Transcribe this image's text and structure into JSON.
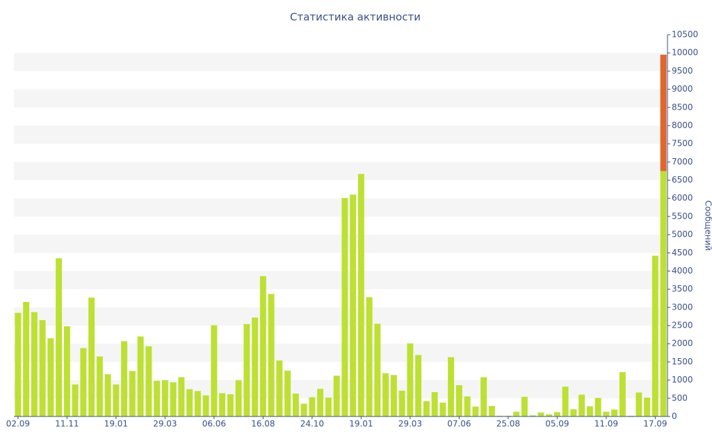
{
  "chart_data": {
    "type": "bar",
    "stacked": true,
    "title": "Статистика активности",
    "y_label": "Сообщений",
    "categories": [
      "02.09",
      null,
      null,
      null,
      null,
      null,
      "11.11",
      null,
      null,
      null,
      null,
      null,
      "19.01",
      null,
      null,
      null,
      null,
      null,
      "29.03",
      null,
      null,
      null,
      null,
      null,
      "06.06",
      null,
      null,
      null,
      null,
      null,
      "16.08",
      null,
      null,
      null,
      null,
      null,
      "24.10",
      null,
      null,
      null,
      null,
      null,
      "19.01",
      null,
      null,
      null,
      null,
      null,
      "29.03",
      null,
      null,
      null,
      null,
      null,
      "07.06",
      null,
      null,
      null,
      null,
      null,
      "25.08",
      null,
      null,
      null,
      null,
      null,
      "05.09",
      null,
      null,
      null,
      null,
      null,
      "11.09",
      null,
      null,
      null,
      null,
      null,
      "17.09",
      null
    ],
    "series": [
      {
        "color": "#bde033",
        "values": [
          2850,
          3150,
          2870,
          2650,
          2150,
          4350,
          2480,
          880,
          1880,
          3270,
          1650,
          1160,
          880,
          2070,
          1250,
          2200,
          1930,
          980,
          1000,
          940,
          1080,
          750,
          700,
          580,
          2510,
          640,
          610,
          1000,
          2540,
          2720,
          3860,
          3370,
          1540,
          1260,
          630,
          350,
          530,
          760,
          520,
          1120,
          6010,
          6100,
          6670,
          3280,
          2550,
          1190,
          1140,
          710,
          2010,
          1690,
          420,
          670,
          380,
          1630,
          860,
          550,
          270,
          1080,
          290,
          20,
          20,
          130,
          540,
          30,
          110,
          60,
          120,
          820,
          200,
          600,
          280,
          510,
          130,
          190,
          1220,
          20,
          660,
          520,
          4420,
          6750
        ]
      },
      {
        "color": "#e0662c",
        "values": [
          null,
          null,
          null,
          null,
          null,
          null,
          null,
          null,
          null,
          null,
          null,
          null,
          null,
          null,
          null,
          null,
          null,
          null,
          null,
          null,
          null,
          null,
          null,
          null,
          null,
          null,
          null,
          null,
          null,
          null,
          null,
          null,
          null,
          null,
          null,
          null,
          null,
          null,
          null,
          null,
          null,
          null,
          null,
          null,
          null,
          null,
          null,
          null,
          null,
          null,
          null,
          null,
          null,
          null,
          null,
          null,
          null,
          null,
          null,
          null,
          null,
          null,
          null,
          null,
          null,
          null,
          null,
          null,
          null,
          null,
          null,
          null,
          null,
          null,
          null,
          null,
          null,
          null,
          null,
          3200
        ]
      }
    ],
    "ylim": [
      0,
      10500
    ],
    "yticks": [
      0,
      500,
      1000,
      1500,
      2000,
      2500,
      3000,
      3500,
      4000,
      4500,
      5000,
      5500,
      6000,
      6500,
      7000,
      7500,
      8000,
      8500,
      9000,
      9500,
      10000,
      10500
    ],
    "grid": true,
    "y_axis_side": "right"
  }
}
